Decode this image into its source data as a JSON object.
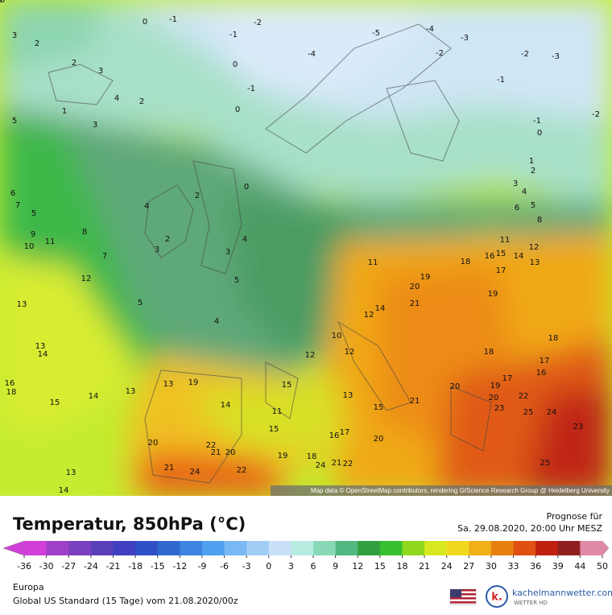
{
  "map": {
    "attribution": "Map data © OpenStreetMap contributors, rendering GIScience Research Group @ Heidelberg University",
    "temperature_labels": [
      3,
      2,
      0,
      -1,
      -2,
      2,
      3,
      4,
      1,
      2,
      3,
      5,
      -1,
      0,
      -1,
      0,
      -4,
      -5,
      -4,
      -3,
      -2,
      -2,
      -3,
      -1,
      -2,
      -1,
      0,
      1,
      2,
      3,
      4,
      6,
      5,
      8,
      11,
      15,
      14,
      13,
      12,
      18,
      17,
      16,
      19,
      20,
      21,
      19,
      18,
      17,
      16,
      18,
      17,
      19,
      20,
      22,
      23,
      25,
      24,
      23,
      25,
      20,
      21,
      15,
      20,
      21,
      22,
      24,
      18,
      19,
      22,
      24,
      21,
      20,
      22,
      21,
      20,
      13,
      14,
      15,
      14,
      13,
      13,
      14,
      13,
      12,
      10,
      11,
      9,
      5,
      7,
      6,
      8,
      7,
      5,
      4,
      5,
      4,
      3,
      2,
      3,
      4,
      2,
      0,
      11,
      12,
      14,
      10,
      13,
      12,
      15,
      17,
      16,
      11,
      13,
      14,
      19,
      18,
      16,
      15,
      12,
      10,
      9
    ]
  },
  "header": {
    "title": "Temperatur, 850hPa (°C)",
    "forecast_label": "Prognose für",
    "forecast_time": "Sa. 29.08.2020, 20:00 Uhr MESZ"
  },
  "colorbar": {
    "ticks": [
      -36,
      -30,
      -27,
      -24,
      -21,
      -18,
      -15,
      -12,
      -9,
      -6,
      -3,
      0,
      3,
      6,
      9,
      12,
      15,
      18,
      21,
      24,
      27,
      30,
      33,
      36,
      39,
      44,
      50
    ],
    "colors": [
      "#d040d8",
      "#a040c8",
      "#7a40c0",
      "#5a40b8",
      "#4040c0",
      "#3050c8",
      "#3068d0",
      "#3c84e0",
      "#50a0f0",
      "#78b8f4",
      "#a0ccf6",
      "#c8e0f8",
      "#b8ece0",
      "#88d8b8",
      "#50b880",
      "#30a040",
      "#38c030",
      "#90d820",
      "#d8e820",
      "#f0d820",
      "#f0b018",
      "#e88010",
      "#e05010",
      "#c02010",
      "#902020",
      "#e088a8"
    ]
  },
  "footer": {
    "region": "Europa",
    "model": "Global US Standard (15 Tage) vom 21.08.2020/00z",
    "logo_mark": "k.",
    "brand": "kachelmannwetter.com",
    "brand_sub": "WETTER HD"
  }
}
